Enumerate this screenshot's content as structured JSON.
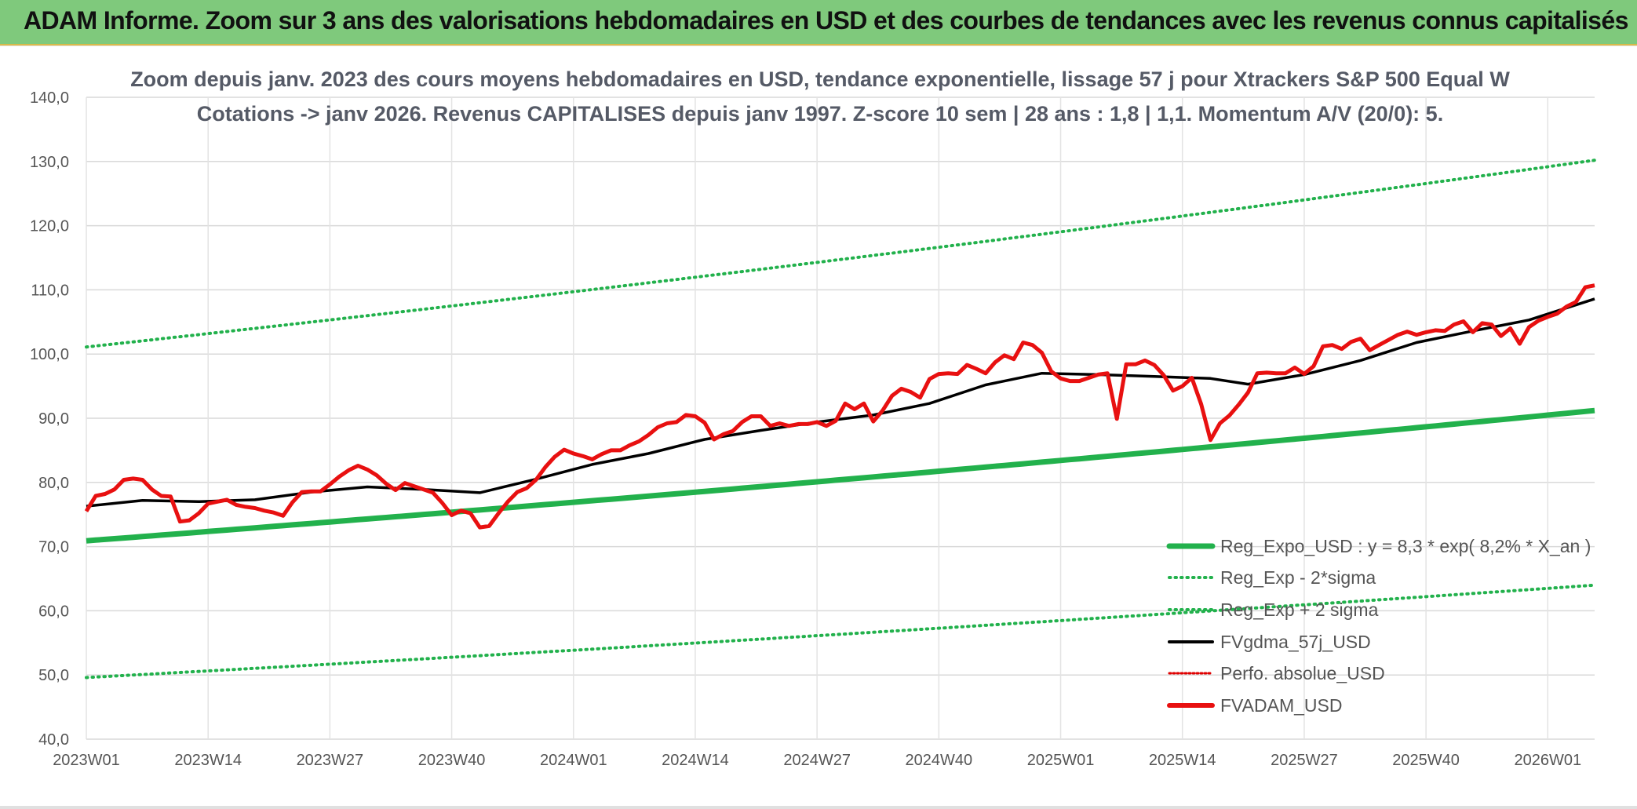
{
  "banner": {
    "title": "ADAM Informe. Zoom sur 3 ans des valorisations hebdomadaires en USD et des courbes de tendances avec les revenus connus capitalisés"
  },
  "colors": {
    "banner_bg": "#7fc97c",
    "trend": "#22b14c",
    "band": "#22b14c",
    "smooth": "#000000",
    "perfo": "#e00000",
    "price": "#e81010"
  },
  "chart_data": {
    "type": "line",
    "title_line1": "Zoom depuis janv. 2023 des cours moyens hebdomadaires en USD, tendance exponentielle, lissage 57 j pour Xtrackers S&P 500 Equal W",
    "title_line2": "Cotations -> janv 2026. Revenus CAPITALISES depuis janv 1997. Z-score 10 sem | 28 ans : 1,8 | 1,1. Momentum A/V (20/0): 5.",
    "ylim": [
      40,
      140
    ],
    "yticks": [
      "40,0",
      "50,0",
      "60,0",
      "70,0",
      "80,0",
      "90,0",
      "100,0",
      "110,0",
      "120,0",
      "130,0",
      "140,0"
    ],
    "xtick_labels": [
      "2023W01",
      "2023W14",
      "2023W27",
      "2023W40",
      "2024W01",
      "2024W14",
      "2024W27",
      "2024W40",
      "2025W01",
      "2025W14",
      "2025W27",
      "2025W40",
      "2026W01"
    ],
    "weeks_count": 162,
    "grid": true,
    "legend_position": "bottom-right",
    "series": [
      {
        "name": "Reg_Expo_USD : y = 8,3 * exp( 8,2% *  X_an )",
        "style": "thick-solid",
        "start": 70.9,
        "end": 91.2
      },
      {
        "name": "Reg_Exp - 2*sigma",
        "style": "dotted",
        "start": 49.6,
        "end": 64.0
      },
      {
        "name": "Reg_Exp + 2 sigma",
        "style": "dotted",
        "start": 101.1,
        "end": 130.2
      },
      {
        "name": "FVgdma_57j_USD",
        "style": "solid",
        "points": [
          [
            0,
            76.3
          ],
          [
            6,
            77.2
          ],
          [
            12,
            77.0
          ],
          [
            18,
            77.3
          ],
          [
            24,
            78.5
          ],
          [
            30,
            79.3
          ],
          [
            36,
            78.9
          ],
          [
            42,
            78.4
          ],
          [
            48,
            80.5
          ],
          [
            54,
            82.8
          ],
          [
            60,
            84.5
          ],
          [
            66,
            86.7
          ],
          [
            72,
            88.1
          ],
          [
            78,
            89.4
          ],
          [
            84,
            90.5
          ],
          [
            90,
            92.3
          ],
          [
            96,
            95.2
          ],
          [
            102,
            97.0
          ],
          [
            108,
            96.8
          ],
          [
            114,
            96.5
          ],
          [
            120,
            96.2
          ],
          [
            124,
            95.3
          ],
          [
            130,
            96.8
          ],
          [
            136,
            99.0
          ],
          [
            142,
            101.8
          ],
          [
            148,
            103.6
          ],
          [
            154,
            105.3
          ],
          [
            161,
            108.6
          ]
        ]
      },
      {
        "name": "Perfo. absolue_USD",
        "style": "dotted-red",
        "points": []
      },
      {
        "name": "FVADAM_USD",
        "style": "thick-solid-red",
        "points": [
          [
            0,
            75.5
          ],
          [
            1,
            77.9
          ],
          [
            2,
            78.2
          ],
          [
            3,
            78.9
          ],
          [
            4,
            80.4
          ],
          [
            5,
            80.6
          ],
          [
            6,
            80.4
          ],
          [
            7,
            78.9
          ],
          [
            8,
            77.9
          ],
          [
            9,
            77.8
          ],
          [
            10,
            73.9
          ],
          [
            11,
            74.1
          ],
          [
            12,
            75.2
          ],
          [
            13,
            76.7
          ],
          [
            14,
            77.0
          ],
          [
            15,
            77.3
          ],
          [
            16,
            76.5
          ],
          [
            17,
            76.2
          ],
          [
            18,
            76.0
          ],
          [
            19,
            75.6
          ],
          [
            20,
            75.3
          ],
          [
            21,
            74.8
          ],
          [
            22,
            76.9
          ],
          [
            23,
            78.5
          ],
          [
            24,
            78.6
          ],
          [
            25,
            78.6
          ],
          [
            26,
            79.7
          ],
          [
            27,
            80.9
          ],
          [
            28,
            81.9
          ],
          [
            29,
            82.6
          ],
          [
            30,
            82.0
          ],
          [
            31,
            81.1
          ],
          [
            32,
            79.8
          ],
          [
            33,
            78.8
          ],
          [
            34,
            79.9
          ],
          [
            35,
            79.4
          ],
          [
            36,
            78.9
          ],
          [
            37,
            78.4
          ],
          [
            38,
            76.8
          ],
          [
            39,
            74.9
          ],
          [
            40,
            75.6
          ],
          [
            41,
            75.2
          ],
          [
            42,
            73.0
          ],
          [
            43,
            73.2
          ],
          [
            44,
            75.2
          ],
          [
            45,
            77.0
          ],
          [
            46,
            78.5
          ],
          [
            47,
            79.1
          ],
          [
            48,
            80.4
          ],
          [
            49,
            82.4
          ],
          [
            50,
            84.0
          ],
          [
            51,
            85.1
          ],
          [
            52,
            84.5
          ],
          [
            53,
            84.1
          ],
          [
            54,
            83.6
          ],
          [
            55,
            84.4
          ],
          [
            56,
            85.0
          ],
          [
            57,
            85.0
          ],
          [
            58,
            85.8
          ],
          [
            59,
            86.4
          ],
          [
            60,
            87.4
          ],
          [
            61,
            88.6
          ],
          [
            62,
            89.2
          ],
          [
            63,
            89.4
          ],
          [
            64,
            90.5
          ],
          [
            65,
            90.3
          ],
          [
            66,
            89.3
          ],
          [
            67,
            86.7
          ],
          [
            68,
            87.5
          ],
          [
            69,
            88.0
          ],
          [
            70,
            89.4
          ],
          [
            71,
            90.3
          ],
          [
            72,
            90.3
          ],
          [
            73,
            88.8
          ],
          [
            74,
            89.2
          ],
          [
            75,
            88.8
          ],
          [
            76,
            89.1
          ],
          [
            77,
            89.1
          ],
          [
            78,
            89.4
          ],
          [
            79,
            88.8
          ],
          [
            80,
            89.6
          ],
          [
            81,
            92.3
          ],
          [
            82,
            91.4
          ],
          [
            83,
            92.3
          ],
          [
            84,
            89.5
          ],
          [
            85,
            91.2
          ],
          [
            86,
            93.5
          ],
          [
            87,
            94.6
          ],
          [
            88,
            94.1
          ],
          [
            89,
            93.2
          ],
          [
            90,
            96.1
          ],
          [
            91,
            96.9
          ],
          [
            92,
            97.0
          ],
          [
            93,
            96.9
          ],
          [
            94,
            98.3
          ],
          [
            95,
            97.7
          ],
          [
            96,
            97.0
          ],
          [
            97,
            98.7
          ],
          [
            98,
            99.8
          ],
          [
            99,
            99.2
          ],
          [
            100,
            101.8
          ],
          [
            101,
            101.4
          ],
          [
            102,
            100.2
          ],
          [
            103,
            97.3
          ],
          [
            104,
            96.2
          ],
          [
            105,
            95.8
          ],
          [
            106,
            95.8
          ],
          [
            107,
            96.3
          ],
          [
            108,
            96.8
          ],
          [
            109,
            97.0
          ],
          [
            110,
            89.9
          ],
          [
            111,
            98.4
          ],
          [
            112,
            98.4
          ],
          [
            113,
            99.0
          ],
          [
            114,
            98.3
          ],
          [
            115,
            96.7
          ],
          [
            116,
            94.3
          ],
          [
            117,
            95.0
          ],
          [
            118,
            96.3
          ],
          [
            119,
            92.2
          ],
          [
            120,
            86.6
          ],
          [
            121,
            89.2
          ],
          [
            122,
            90.4
          ],
          [
            123,
            92.1
          ],
          [
            124,
            94.0
          ],
          [
            125,
            97.0
          ],
          [
            126,
            97.1
          ],
          [
            127,
            97.0
          ],
          [
            128,
            97.0
          ],
          [
            129,
            97.9
          ],
          [
            130,
            96.9
          ],
          [
            131,
            98.1
          ],
          [
            132,
            101.2
          ],
          [
            133,
            101.4
          ],
          [
            134,
            100.8
          ],
          [
            135,
            101.9
          ],
          [
            136,
            102.4
          ],
          [
            137,
            100.6
          ],
          [
            138,
            101.4
          ],
          [
            139,
            102.2
          ],
          [
            140,
            103.0
          ],
          [
            141,
            103.5
          ],
          [
            142,
            103.0
          ],
          [
            143,
            103.4
          ],
          [
            144,
            103.7
          ],
          [
            145,
            103.6
          ],
          [
            146,
            104.6
          ],
          [
            147,
            105.1
          ],
          [
            148,
            103.4
          ],
          [
            149,
            104.8
          ],
          [
            150,
            104.6
          ],
          [
            151,
            102.8
          ],
          [
            152,
            104.0
          ],
          [
            153,
            101.6
          ],
          [
            154,
            104.2
          ],
          [
            155,
            105.2
          ],
          [
            156,
            105.8
          ],
          [
            157,
            106.3
          ],
          [
            158,
            107.4
          ],
          [
            159,
            108.1
          ],
          [
            160,
            110.4
          ],
          [
            161,
            110.7
          ]
        ]
      }
    ]
  }
}
